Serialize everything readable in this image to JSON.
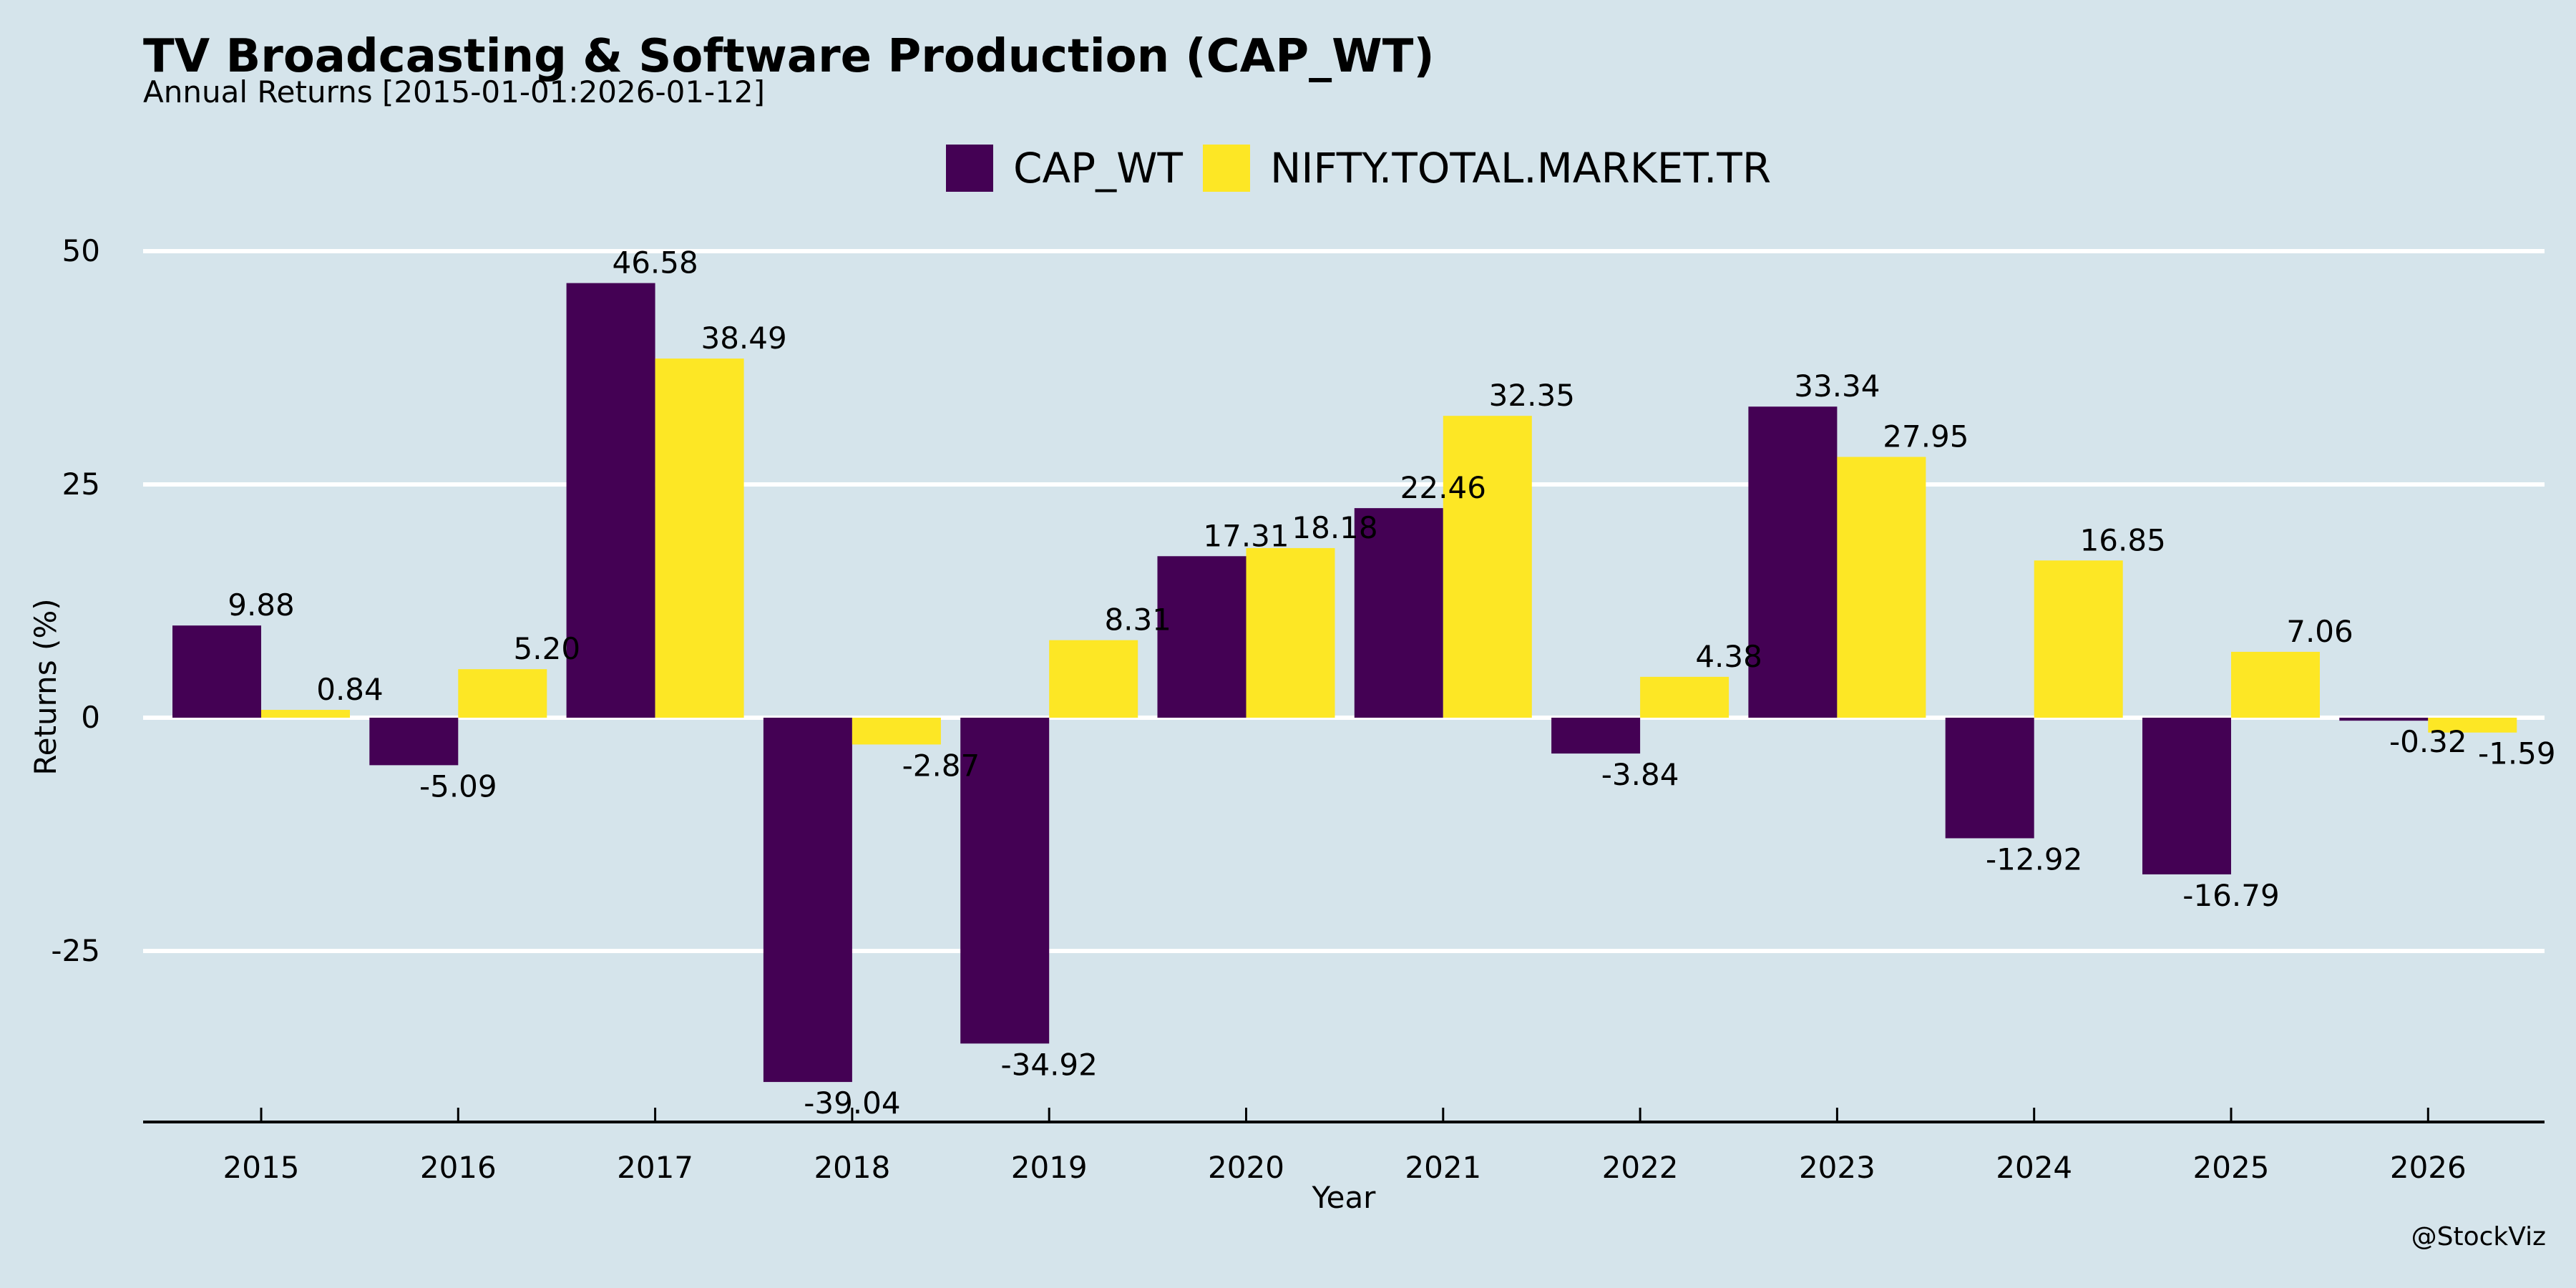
{
  "header": {
    "title": "TV Broadcasting & Software Production (CAP_WT)",
    "subtitle": "Annual Returns [2015-01-01:2026-01-12]"
  },
  "watermark": "@StockViz",
  "colors": {
    "background": "#d5e4eb",
    "cap_wt": "#440154",
    "nifty": "#fde725",
    "grid": "#ffffff",
    "axis": "#000000"
  },
  "chart_data": {
    "type": "bar",
    "title": "TV Broadcasting & Software Production (CAP_WT)",
    "subtitle": "Annual Returns [2015-01-01:2026-01-12]",
    "xlabel": "Year",
    "ylabel": "Returns (%)",
    "categories": [
      "2015",
      "2016",
      "2017",
      "2018",
      "2019",
      "2020",
      "2021",
      "2022",
      "2023",
      "2024",
      "2025",
      "2026"
    ],
    "series": [
      {
        "name": "CAP_WT",
        "color": "#440154",
        "values": [
          9.88,
          -5.09,
          46.58,
          -39.04,
          -34.92,
          17.31,
          22.46,
          -3.84,
          33.34,
          -12.92,
          -16.79,
          -0.32
        ],
        "labels": [
          "9.88",
          "-5.09",
          "46.58",
          "-39.04",
          "-34.92",
          "17.31",
          "22.46",
          "-3.84",
          "33.34",
          "-12.92",
          "-16.79",
          "-0.32"
        ]
      },
      {
        "name": "NIFTY.TOTAL.MARKET.TR",
        "color": "#fde725",
        "values": [
          0.84,
          5.2,
          38.49,
          -2.87,
          8.31,
          18.18,
          32.35,
          4.38,
          27.95,
          16.85,
          7.06,
          -1.59
        ],
        "labels": [
          "0.84",
          "5.20",
          "38.49",
          "-2.87",
          "8.31",
          "18.18",
          "32.35",
          "4.38",
          "27.95",
          "16.85",
          "7.06",
          "-1.59"
        ]
      }
    ],
    "yticks": [
      -25,
      0,
      25,
      50
    ],
    "ytick_labels": [
      "-25",
      "0",
      "25",
      "50"
    ],
    "ylim": [
      -43.3,
      56
    ],
    "grid": true,
    "legend": "top-center"
  }
}
